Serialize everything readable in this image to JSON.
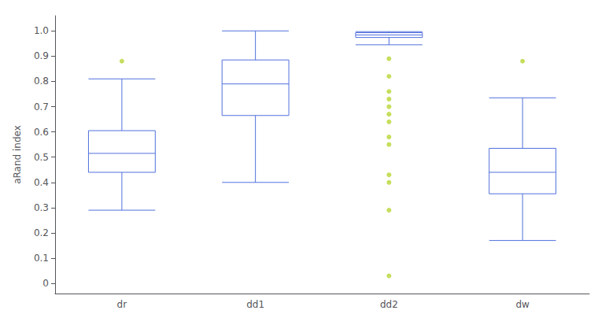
{
  "chart_data": {
    "type": "boxplot",
    "categories": [
      "dr",
      "dd1",
      "dd2",
      "dw"
    ],
    "values": [
      [
        0.29,
        0.44,
        0.515,
        0.605,
        0.81
      ],
      [
        0.4,
        0.665,
        0.79,
        0.885,
        1.0
      ],
      [
        0.945,
        0.974,
        0.984,
        0.993,
        0.997
      ],
      [
        0.17,
        0.355,
        0.44,
        0.535,
        0.735
      ]
    ],
    "outliers": [
      [
        0.88
      ],
      [],
      [
        0.89,
        0.82,
        0.76,
        0.73,
        0.7,
        0.67,
        0.64,
        0.58,
        0.55,
        0.43,
        0.4,
        0.29,
        0.03
      ],
      [
        0.88
      ]
    ],
    "ylabel": "aRand index",
    "ylim": [
      -0.04,
      1.06
    ],
    "yticks": [
      0,
      0.1,
      0.2,
      0.3,
      0.4,
      0.5,
      0.6,
      0.7,
      0.8,
      0.9,
      {
        "value": 1.0,
        "label": "1.0"
      }
    ],
    "grid": false
  }
}
